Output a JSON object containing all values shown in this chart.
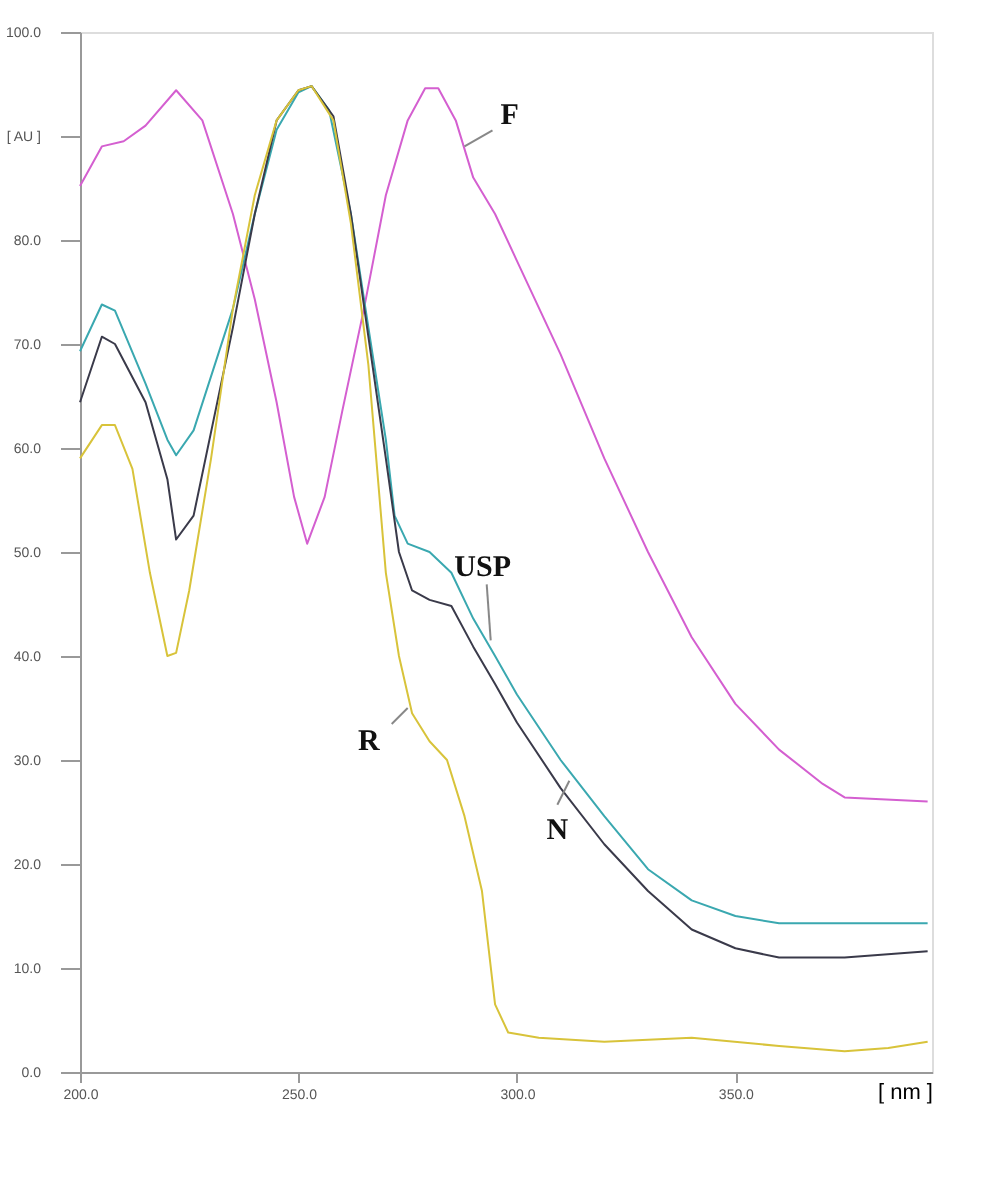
{
  "chart_data": {
    "type": "line",
    "xlabel": "[ nm ]",
    "xlim": [
      200,
      395
    ],
    "ylim": [
      0,
      100
    ],
    "xticks": [
      {
        "value": 200,
        "label": "200.0"
      },
      {
        "value": 250,
        "label": "250.0"
      },
      {
        "value": 300,
        "label": "300.0"
      },
      {
        "value": 350,
        "label": "350.0"
      }
    ],
    "yticks": [
      {
        "value": 0,
        "label": "0.0"
      },
      {
        "value": 10,
        "label": "10.0"
      },
      {
        "value": 20,
        "label": "20.0"
      },
      {
        "value": 30,
        "label": "30.0"
      },
      {
        "value": 40,
        "label": "40.0"
      },
      {
        "value": 50,
        "label": "50.0"
      },
      {
        "value": 60,
        "label": "60.0"
      },
      {
        "value": 70,
        "label": "70.0"
      },
      {
        "value": 80,
        "label": "80.0"
      },
      {
        "value": 90,
        "label": "[ AU ]"
      },
      {
        "value": 100,
        "label": "100.0"
      }
    ],
    "grid": false,
    "legend": false,
    "marker": "none",
    "line_style": "solid",
    "series": [
      {
        "color": "#d45fd0",
        "x": [
          200,
          205,
          210,
          215,
          222,
          228,
          235,
          240,
          245,
          249,
          252,
          256,
          260,
          265,
          270,
          275,
          279,
          282,
          286,
          290,
          295,
          300,
          310,
          320,
          330,
          340,
          350,
          360,
          370,
          375,
          394
        ],
        "values": [
          85.2,
          89,
          89.5,
          91,
          94.4,
          91.5,
          82.5,
          74.3,
          64.4,
          55.3,
          50.8,
          55.3,
          63.5,
          73.4,
          84.3,
          91.5,
          94.6,
          94.6,
          91.5,
          86,
          82.5,
          78,
          69,
          59,
          50,
          41.8,
          35.4,
          31,
          27.7,
          26.4,
          26
        ]
      },
      {
        "color": "#3aa8b0",
        "x": [
          200,
          205,
          208,
          215,
          220,
          222,
          226,
          235,
          240,
          245,
          250,
          253,
          257,
          262,
          266,
          270,
          272,
          275,
          280,
          285,
          290,
          295,
          300,
          310,
          320,
          330,
          340,
          350,
          360,
          375,
          394
        ],
        "values": [
          69.3,
          73.8,
          73.2,
          66.2,
          60.8,
          59.3,
          61.7,
          73.4,
          82.5,
          90.6,
          94.2,
          94.8,
          92.5,
          82.5,
          71.6,
          60.8,
          53.5,
          50.8,
          50,
          48,
          43.6,
          40,
          36.3,
          30,
          24.6,
          19.5,
          16.5,
          15,
          14.3,
          14.3,
          14.3
        ]
      },
      {
        "color": "#3a3a4a",
        "x": [
          200,
          205,
          208,
          215,
          220,
          222,
          226,
          235,
          240,
          245,
          250,
          253,
          258,
          262,
          266,
          270,
          273,
          276,
          280,
          285,
          290,
          295,
          300,
          310,
          320,
          330,
          340,
          350,
          360,
          375,
          394
        ],
        "values": [
          64.4,
          70.7,
          70,
          64.4,
          57,
          51.2,
          53.5,
          71.6,
          82.5,
          91.5,
          94.4,
          94.8,
          91.9,
          82.5,
          70.7,
          59,
          50,
          46.3,
          45.4,
          44.8,
          40.9,
          37.3,
          33.6,
          27.3,
          21.9,
          17.4,
          13.7,
          11.9,
          11,
          11,
          11.6
        ]
      },
      {
        "color": "#d8c33a",
        "x": [
          200,
          205,
          208,
          212,
          216,
          220,
          222,
          225,
          230,
          235,
          240,
          245,
          250,
          253,
          258,
          262,
          266,
          270,
          273,
          276,
          280,
          284,
          288,
          292,
          295,
          298,
          305,
          320,
          340,
          360,
          375,
          385,
          394
        ],
        "values": [
          59,
          62.2,
          62.2,
          58,
          48,
          40,
          40.3,
          46.3,
          59,
          73.4,
          84.3,
          91.5,
          94.4,
          94.8,
          91.5,
          81.6,
          68,
          48,
          40,
          34.5,
          31.8,
          30,
          24.6,
          17.4,
          6.5,
          3.8,
          3.3,
          2.9,
          3.3,
          2.5,
          2,
          2.3,
          2.9
        ]
      }
    ],
    "annotations": [
      {
        "text": "F",
        "x": 288,
        "y": 89
      },
      {
        "text": "USP",
        "x": 294,
        "y": 41.5
      },
      {
        "text": "R",
        "x": 275,
        "y": 35
      },
      {
        "text": "N",
        "x": 312,
        "y": 28
      }
    ]
  }
}
